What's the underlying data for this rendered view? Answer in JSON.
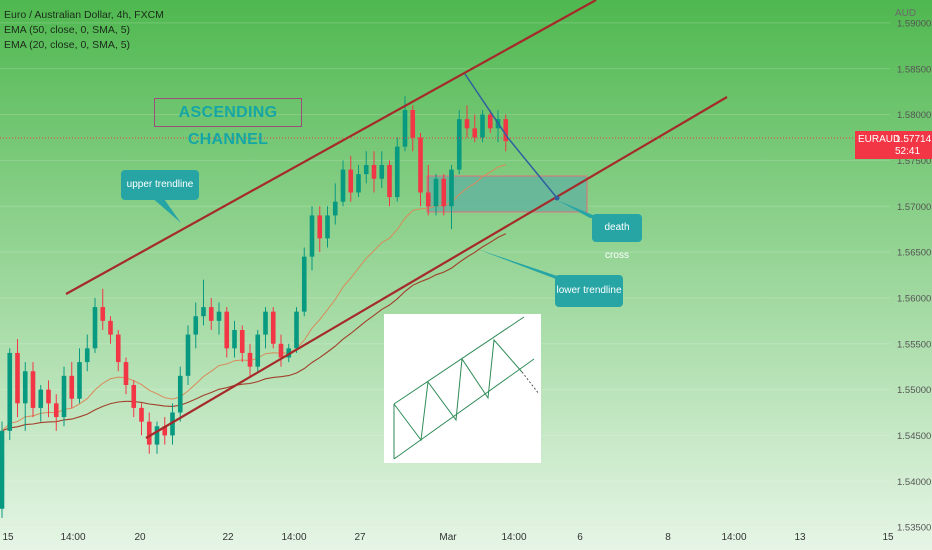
{
  "legend": {
    "title": "Euro / Australian Dollar, 4h, FXCM",
    "ema1": "EMA (50, close, 0, SMA, 5)",
    "ema2": "EMA (20, close, 0, SMA, 5)"
  },
  "price_axis": {
    "unit": "AUD",
    "ticks": [
      "1.59000",
      "1.58500",
      "1.58000",
      "1.57500",
      "1.57000",
      "1.56500",
      "1.56000",
      "1.55500",
      "1.55000",
      "1.54500",
      "1.54000",
      "1.53500"
    ]
  },
  "time_axis": {
    "ticks": [
      "15",
      "14:00",
      "20",
      "22",
      "14:00",
      "27",
      "Mar",
      "14:00",
      "6",
      "8",
      "14:00",
      "13",
      "15"
    ]
  },
  "last_price": {
    "symbol": "EURAUD",
    "value": "1.57714",
    "countdown": "52:41"
  },
  "annotations": {
    "title": "ASCENDING CHANNEL",
    "upper_trendline": "upper trendline",
    "lower_trendline": "lower trendline",
    "death_cross": "death cross"
  },
  "colors": {
    "background_top": "#4fb84f",
    "background_bottom": "#e6f5e6",
    "up_candle": "#089981",
    "down_candle": "#f23645",
    "channel_line": "#a52a2a",
    "ema50": "#a0402a",
    "ema20": "#d98a5a",
    "callout": "#27a5a5",
    "price_tag": "#f23645"
  },
  "chart_data": {
    "type": "candlestick",
    "yrange": [
      1.5325,
      1.5925
    ],
    "candles": [
      {
        "o": 1.537,
        "h": 1.5465,
        "l": 1.536,
        "c": 1.5455
      },
      {
        "o": 1.5455,
        "h": 1.5545,
        "l": 1.5445,
        "c": 1.554
      },
      {
        "o": 1.554,
        "h": 1.5555,
        "l": 1.547,
        "c": 1.5485
      },
      {
        "o": 1.5485,
        "h": 1.553,
        "l": 1.5455,
        "c": 1.552
      },
      {
        "o": 1.552,
        "h": 1.553,
        "l": 1.547,
        "c": 1.548
      },
      {
        "o": 1.548,
        "h": 1.5505,
        "l": 1.5465,
        "c": 1.55
      },
      {
        "o": 1.55,
        "h": 1.551,
        "l": 1.547,
        "c": 1.5485
      },
      {
        "o": 1.5485,
        "h": 1.5495,
        "l": 1.5455,
        "c": 1.547
      },
      {
        "o": 1.547,
        "h": 1.5525,
        "l": 1.546,
        "c": 1.5515
      },
      {
        "o": 1.5515,
        "h": 1.553,
        "l": 1.548,
        "c": 1.549
      },
      {
        "o": 1.549,
        "h": 1.5545,
        "l": 1.5485,
        "c": 1.553
      },
      {
        "o": 1.553,
        "h": 1.556,
        "l": 1.552,
        "c": 1.5545
      },
      {
        "o": 1.5545,
        "h": 1.56,
        "l": 1.554,
        "c": 1.559
      },
      {
        "o": 1.559,
        "h": 1.561,
        "l": 1.5565,
        "c": 1.5575
      },
      {
        "o": 1.5575,
        "h": 1.558,
        "l": 1.555,
        "c": 1.556
      },
      {
        "o": 1.556,
        "h": 1.5565,
        "l": 1.552,
        "c": 1.553
      },
      {
        "o": 1.553,
        "h": 1.5535,
        "l": 1.5495,
        "c": 1.5505
      },
      {
        "o": 1.5505,
        "h": 1.551,
        "l": 1.547,
        "c": 1.548
      },
      {
        "o": 1.548,
        "h": 1.5485,
        "l": 1.545,
        "c": 1.5465
      },
      {
        "o": 1.5465,
        "h": 1.5475,
        "l": 1.543,
        "c": 1.544
      },
      {
        "o": 1.544,
        "h": 1.5465,
        "l": 1.543,
        "c": 1.546
      },
      {
        "o": 1.546,
        "h": 1.547,
        "l": 1.544,
        "c": 1.545
      },
      {
        "o": 1.545,
        "h": 1.5485,
        "l": 1.544,
        "c": 1.5475
      },
      {
        "o": 1.5475,
        "h": 1.5525,
        "l": 1.5465,
        "c": 1.5515
      },
      {
        "o": 1.5515,
        "h": 1.557,
        "l": 1.5505,
        "c": 1.556
      },
      {
        "o": 1.556,
        "h": 1.5595,
        "l": 1.5545,
        "c": 1.558
      },
      {
        "o": 1.558,
        "h": 1.562,
        "l": 1.557,
        "c": 1.559
      },
      {
        "o": 1.559,
        "h": 1.56,
        "l": 1.5565,
        "c": 1.5575
      },
      {
        "o": 1.5575,
        "h": 1.5595,
        "l": 1.556,
        "c": 1.5585
      },
      {
        "o": 1.5585,
        "h": 1.559,
        "l": 1.5535,
        "c": 1.5545
      },
      {
        "o": 1.5545,
        "h": 1.5575,
        "l": 1.5535,
        "c": 1.5565
      },
      {
        "o": 1.5565,
        "h": 1.557,
        "l": 1.553,
        "c": 1.554
      },
      {
        "o": 1.554,
        "h": 1.555,
        "l": 1.5515,
        "c": 1.5525
      },
      {
        "o": 1.5525,
        "h": 1.5565,
        "l": 1.552,
        "c": 1.556
      },
      {
        "o": 1.556,
        "h": 1.559,
        "l": 1.5545,
        "c": 1.5585
      },
      {
        "o": 1.5585,
        "h": 1.559,
        "l": 1.5545,
        "c": 1.555
      },
      {
        "o": 1.555,
        "h": 1.556,
        "l": 1.5525,
        "c": 1.5535
      },
      {
        "o": 1.5535,
        "h": 1.555,
        "l": 1.553,
        "c": 1.5545
      },
      {
        "o": 1.5545,
        "h": 1.559,
        "l": 1.554,
        "c": 1.5585
      },
      {
        "o": 1.5585,
        "h": 1.5655,
        "l": 1.558,
        "c": 1.5645
      },
      {
        "o": 1.5645,
        "h": 1.57,
        "l": 1.563,
        "c": 1.569
      },
      {
        "o": 1.569,
        "h": 1.57,
        "l": 1.565,
        "c": 1.5665
      },
      {
        "o": 1.5665,
        "h": 1.57,
        "l": 1.5655,
        "c": 1.569
      },
      {
        "o": 1.569,
        "h": 1.5725,
        "l": 1.568,
        "c": 1.5705
      },
      {
        "o": 1.5705,
        "h": 1.575,
        "l": 1.57,
        "c": 1.574
      },
      {
        "o": 1.574,
        "h": 1.5755,
        "l": 1.5705,
        "c": 1.5715
      },
      {
        "o": 1.5715,
        "h": 1.5745,
        "l": 1.571,
        "c": 1.5735
      },
      {
        "o": 1.5735,
        "h": 1.576,
        "l": 1.5725,
        "c": 1.5745
      },
      {
        "o": 1.5745,
        "h": 1.576,
        "l": 1.5715,
        "c": 1.573
      },
      {
        "o": 1.573,
        "h": 1.576,
        "l": 1.572,
        "c": 1.5745
      },
      {
        "o": 1.5745,
        "h": 1.575,
        "l": 1.57,
        "c": 1.571
      },
      {
        "o": 1.571,
        "h": 1.5775,
        "l": 1.5705,
        "c": 1.5765
      },
      {
        "o": 1.5765,
        "h": 1.582,
        "l": 1.576,
        "c": 1.5805
      },
      {
        "o": 1.5805,
        "h": 1.581,
        "l": 1.576,
        "c": 1.5775
      },
      {
        "o": 1.5775,
        "h": 1.578,
        "l": 1.57,
        "c": 1.5715
      },
      {
        "o": 1.5715,
        "h": 1.5745,
        "l": 1.569,
        "c": 1.57
      },
      {
        "o": 1.57,
        "h": 1.5735,
        "l": 1.569,
        "c": 1.573
      },
      {
        "o": 1.573,
        "h": 1.5735,
        "l": 1.569,
        "c": 1.57
      },
      {
        "o": 1.57,
        "h": 1.5745,
        "l": 1.5675,
        "c": 1.574
      },
      {
        "o": 1.574,
        "h": 1.5805,
        "l": 1.5735,
        "c": 1.5795
      },
      {
        "o": 1.5795,
        "h": 1.581,
        "l": 1.5775,
        "c": 1.5785
      },
      {
        "o": 1.5785,
        "h": 1.58,
        "l": 1.577,
        "c": 1.5775
      },
      {
        "o": 1.5775,
        "h": 1.5805,
        "l": 1.577,
        "c": 1.58
      },
      {
        "o": 1.58,
        "h": 1.5805,
        "l": 1.578,
        "c": 1.5785
      },
      {
        "o": 1.5785,
        "h": 1.5805,
        "l": 1.577,
        "c": 1.5795
      },
      {
        "o": 1.5795,
        "h": 1.58,
        "l": 1.576,
        "c": 1.5771
      }
    ]
  }
}
